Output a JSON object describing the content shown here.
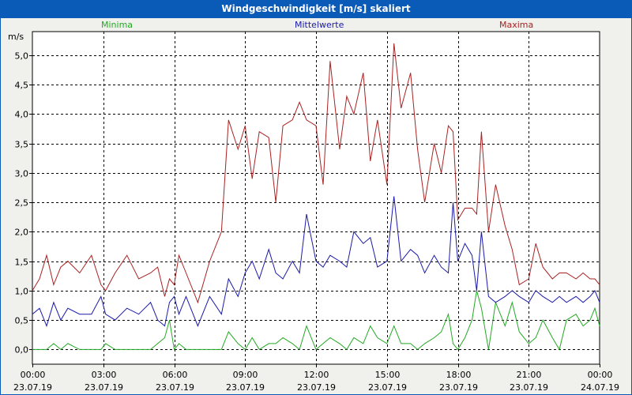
{
  "chart_data": {
    "type": "line",
    "title": "Windgeschwindigkeit [m/s] skaliert",
    "ylabel": "m/s",
    "ylim": [
      -0.25,
      5.4
    ],
    "yticks": [
      0.0,
      0.5,
      1.0,
      1.5,
      2.0,
      2.5,
      3.0,
      3.5,
      4.0,
      4.5,
      5.0
    ],
    "ytick_labels": [
      "0,0",
      "0,5",
      "1,0",
      "1,5",
      "2,0",
      "2,5",
      "3,0",
      "3,5",
      "4,0",
      "4,5",
      "5,0"
    ],
    "xlim": [
      0,
      24
    ],
    "xticks": [
      0,
      3,
      6,
      9,
      12,
      15,
      18,
      21,
      24
    ],
    "xtick_labels": [
      [
        "00:00",
        "23.07.19"
      ],
      [
        "03:00",
        "23.07.19"
      ],
      [
        "06:00",
        "23.07.19"
      ],
      [
        "09:00",
        "23.07.19"
      ],
      [
        "12:00",
        "23.07.19"
      ],
      [
        "15:00",
        "23.07.19"
      ],
      [
        "18:00",
        "23.07.19"
      ],
      [
        "21:00",
        "23.07.19"
      ],
      [
        "00:00",
        "24.07.19"
      ]
    ],
    "grid": true,
    "series": [
      {
        "name": "Minima",
        "color": "#22aa22",
        "x": [
          0,
          0.3,
          0.6,
          0.9,
          1.2,
          1.5,
          2.0,
          2.5,
          2.9,
          3.1,
          3.5,
          4.0,
          4.5,
          5.0,
          5.3,
          5.6,
          5.8,
          6.0,
          6.2,
          6.5,
          7.0,
          7.5,
          8.0,
          8.3,
          8.7,
          9.0,
          9.3,
          9.6,
          10.0,
          10.3,
          10.6,
          11.0,
          11.3,
          11.6,
          12.0,
          12.3,
          12.6,
          13.0,
          13.3,
          13.6,
          14.0,
          14.3,
          14.6,
          15.0,
          15.3,
          15.6,
          16.0,
          16.3,
          16.6,
          17.0,
          17.3,
          17.6,
          17.8,
          18.0,
          18.3,
          18.6,
          18.8,
          19.0,
          19.3,
          19.6,
          20.0,
          20.3,
          20.6,
          21.0,
          21.3,
          21.6,
          22.0,
          22.3,
          22.6,
          23.0,
          23.3,
          23.6,
          23.8,
          24.0
        ],
        "values": [
          0,
          0,
          0,
          0.1,
          0,
          0.1,
          0,
          0,
          0,
          0.1,
          0,
          0,
          0,
          0,
          0.1,
          0.2,
          0.5,
          0,
          0.1,
          0,
          0,
          0,
          0,
          0.3,
          0.1,
          0,
          0.2,
          0,
          0.1,
          0.1,
          0.2,
          0.1,
          0,
          0.4,
          0,
          0.1,
          0.2,
          0.1,
          0,
          0.2,
          0.1,
          0.4,
          0.2,
          0.1,
          0.4,
          0.1,
          0.1,
          0,
          0.1,
          0.2,
          0.3,
          0.6,
          0.1,
          0,
          0.2,
          0.5,
          1.0,
          0.7,
          0,
          0.8,
          0.4,
          0.8,
          0.3,
          0.1,
          0.2,
          0.5,
          0.2,
          0,
          0.5,
          0.6,
          0.4,
          0.5,
          0.7,
          0.4
        ]
      },
      {
        "name": "Mittelwerte",
        "color": "#1a1aaa",
        "x": [
          0,
          0.3,
          0.6,
          0.9,
          1.2,
          1.5,
          2.0,
          2.5,
          2.9,
          3.1,
          3.5,
          4.0,
          4.5,
          5.0,
          5.3,
          5.6,
          5.8,
          6.0,
          6.2,
          6.5,
          7.0,
          7.5,
          8.0,
          8.3,
          8.7,
          9.0,
          9.3,
          9.6,
          10.0,
          10.3,
          10.6,
          11.0,
          11.3,
          11.6,
          12.0,
          12.3,
          12.6,
          13.0,
          13.3,
          13.6,
          14.0,
          14.3,
          14.6,
          15.0,
          15.3,
          15.6,
          16.0,
          16.3,
          16.6,
          17.0,
          17.3,
          17.6,
          17.8,
          18.0,
          18.3,
          18.6,
          18.8,
          19.0,
          19.3,
          19.6,
          20.0,
          20.3,
          20.6,
          21.0,
          21.3,
          21.6,
          22.0,
          22.3,
          22.6,
          23.0,
          23.3,
          23.6,
          23.8,
          24.0
        ],
        "values": [
          0.6,
          0.7,
          0.4,
          0.8,
          0.5,
          0.7,
          0.6,
          0.6,
          0.9,
          0.6,
          0.5,
          0.7,
          0.6,
          0.8,
          0.5,
          0.4,
          0.8,
          0.9,
          0.6,
          0.9,
          0.4,
          0.9,
          0.6,
          1.2,
          0.9,
          1.3,
          1.5,
          1.2,
          1.7,
          1.3,
          1.2,
          1.5,
          1.3,
          2.3,
          1.5,
          1.4,
          1.6,
          1.5,
          1.4,
          2.0,
          1.8,
          1.9,
          1.4,
          1.5,
          2.6,
          1.5,
          1.7,
          1.6,
          1.3,
          1.6,
          1.4,
          1.3,
          2.5,
          1.5,
          1.8,
          1.6,
          1.0,
          2.0,
          0.9,
          0.8,
          0.9,
          1.0,
          0.9,
          0.8,
          1.0,
          0.9,
          0.8,
          0.9,
          0.8,
          0.9,
          0.8,
          0.9,
          1.0,
          0.8
        ]
      },
      {
        "name": "Maxima",
        "color": "#aa2222",
        "x": [
          0,
          0.3,
          0.6,
          0.9,
          1.2,
          1.5,
          2.0,
          2.5,
          2.9,
          3.1,
          3.5,
          4.0,
          4.5,
          5.0,
          5.3,
          5.6,
          5.8,
          6.0,
          6.2,
          6.5,
          7.0,
          7.5,
          8.0,
          8.3,
          8.7,
          9.0,
          9.3,
          9.6,
          10.0,
          10.3,
          10.6,
          11.0,
          11.3,
          11.6,
          12.0,
          12.3,
          12.6,
          13.0,
          13.3,
          13.6,
          14.0,
          14.3,
          14.6,
          15.0,
          15.3,
          15.6,
          16.0,
          16.3,
          16.6,
          17.0,
          17.3,
          17.6,
          17.8,
          18.0,
          18.3,
          18.6,
          18.8,
          19.0,
          19.3,
          19.6,
          20.0,
          20.3,
          20.6,
          21.0,
          21.3,
          21.6,
          22.0,
          22.3,
          22.6,
          23.0,
          23.3,
          23.6,
          23.8,
          24.0
        ],
        "values": [
          1.0,
          1.2,
          1.6,
          1.1,
          1.4,
          1.5,
          1.3,
          1.6,
          1.1,
          1.0,
          1.3,
          1.6,
          1.2,
          1.3,
          1.4,
          0.9,
          1.2,
          1.1,
          1.6,
          1.3,
          0.8,
          1.5,
          2.0,
          3.9,
          3.4,
          3.8,
          2.9,
          3.7,
          3.6,
          2.5,
          3.8,
          3.9,
          4.2,
          3.9,
          3.8,
          2.8,
          4.9,
          3.4,
          4.3,
          4.0,
          4.7,
          3.2,
          3.9,
          2.8,
          5.2,
          4.1,
          4.7,
          3.4,
          2.5,
          3.5,
          3.0,
          3.8,
          3.7,
          2.2,
          2.4,
          2.4,
          2.3,
          3.7,
          2.0,
          2.8,
          2.1,
          1.7,
          1.1,
          1.2,
          1.8,
          1.4,
          1.2,
          1.3,
          1.3,
          1.2,
          1.3,
          1.2,
          1.2,
          1.1
        ]
      }
    ]
  }
}
